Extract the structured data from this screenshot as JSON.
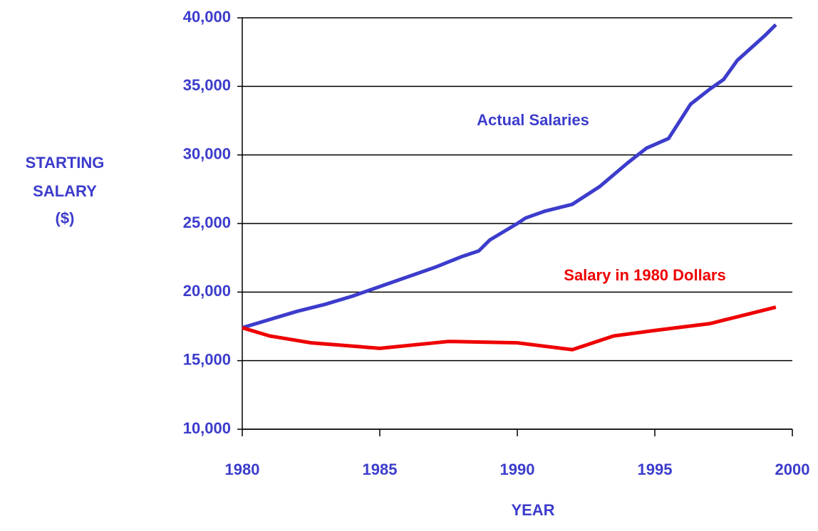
{
  "chart_data": {
    "type": "line",
    "xlabel": "YEAR",
    "ylabel": [
      "STARTING",
      "SALARY",
      "($)"
    ],
    "label_color": "#3c3ccc",
    "xlim": [
      1980,
      2000
    ],
    "xticks": [
      1980,
      1985,
      1990,
      1995,
      2000
    ],
    "ylim": [
      10000,
      40000
    ],
    "yticks": [
      {
        "value": 10000,
        "label": "10,000"
      },
      {
        "value": 15000,
        "label": "15,000"
      },
      {
        "value": 20000,
        "label": "20,000"
      },
      {
        "value": 25000,
        "label": "25,000"
      },
      {
        "value": 30000,
        "label": "30,000"
      },
      {
        "value": 35000,
        "label": "35,000"
      },
      {
        "value": 40000,
        "label": "40,000"
      }
    ],
    "grid": true,
    "series": [
      {
        "name": "Actual Salaries",
        "color": "#3c3ccc",
        "x": [
          1980,
          1981,
          1982,
          1983,
          1984,
          1985,
          1986,
          1987,
          1988,
          1988.6,
          1989,
          1990,
          1990.3,
          1991,
          1992,
          1993,
          1994,
          1994.7,
          1995.5,
          1996.3,
          1997,
          1997.5,
          1998,
          1999,
          1999.4
        ],
        "values": [
          17400,
          18000,
          18600,
          19100,
          19700,
          20400,
          21100,
          21800,
          22600,
          23000,
          23800,
          25000,
          25400,
          25900,
          26400,
          27700,
          29400,
          30500,
          31200,
          33700,
          34800,
          35500,
          36900,
          38700,
          39500
        ]
      },
      {
        "name": "Salary in 1980 Dollars",
        "color": "#ee0000",
        "x": [
          1980,
          1981,
          1982.5,
          1985,
          1987.5,
          1990,
          1992,
          1993.5,
          1995,
          1997,
          1998,
          1999.4
        ],
        "values": [
          17400,
          16800,
          16300,
          15900,
          16400,
          16300,
          15800,
          16800,
          17200,
          17700,
          18200,
          18900
        ]
      }
    ]
  }
}
